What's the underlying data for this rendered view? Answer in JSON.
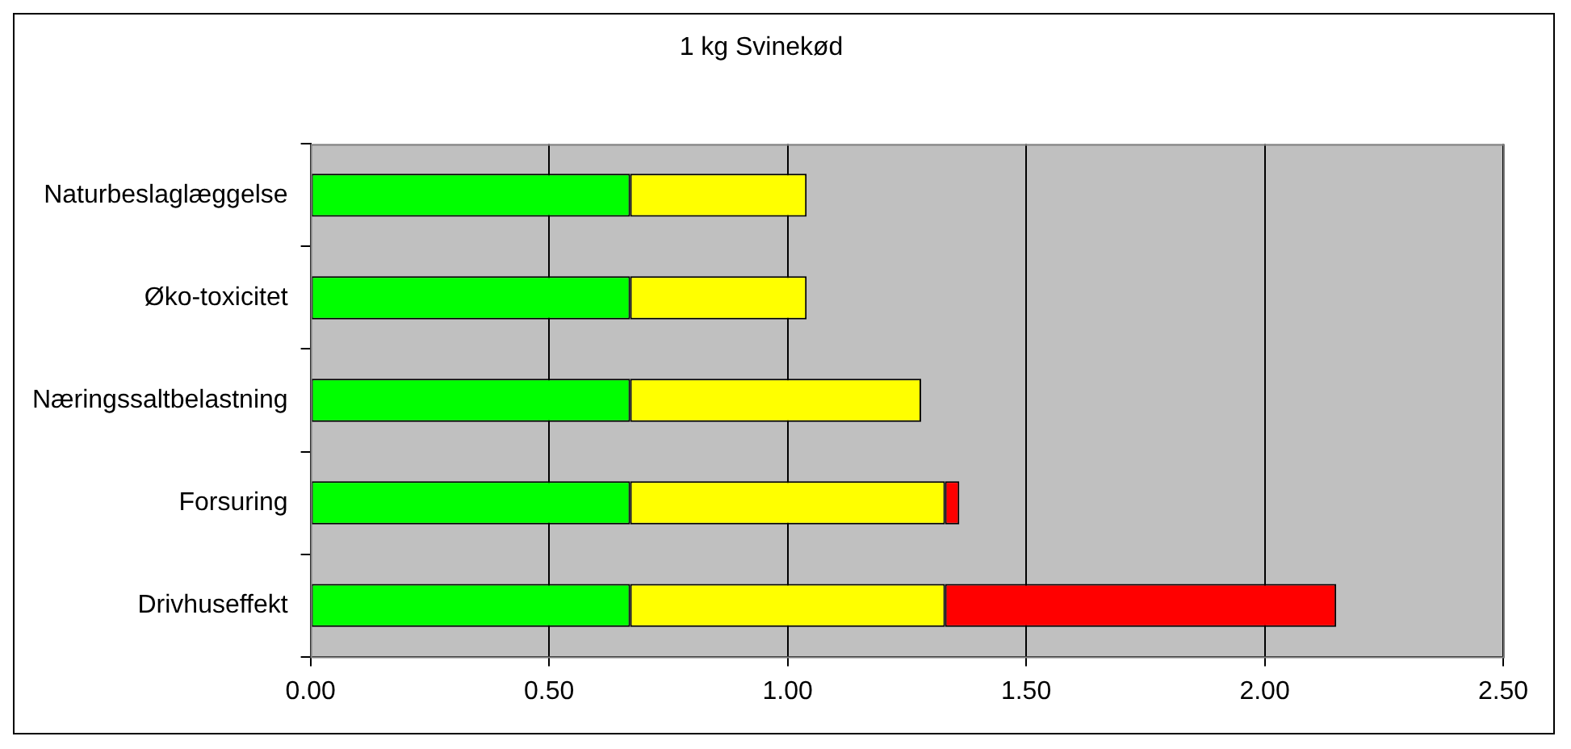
{
  "chart_data": {
    "type": "bar",
    "orientation": "horizontal",
    "stacked": true,
    "title": "1 kg Svinekød",
    "categories": [
      "Naturbeslaglæggelse",
      "Øko-toxicitet",
      "Næringssaltbelastning",
      "Forsuring",
      "Drivhuseffekt"
    ],
    "series": [
      {
        "color": "#00ff00",
        "values": [
          0.67,
          0.67,
          0.67,
          0.67,
          0.67
        ]
      },
      {
        "color": "#ffff00",
        "values": [
          0.37,
          0.37,
          0.61,
          0.66,
          0.66
        ]
      },
      {
        "color": "#ff0000",
        "values": [
          null,
          null,
          null,
          0.03,
          0.82
        ]
      }
    ],
    "xlim": [
      0,
      2.5
    ],
    "xticks": [
      {
        "value": 0,
        "label": "0.00"
      },
      {
        "value": 0.5,
        "label": "0.50"
      },
      {
        "value": 1,
        "label": "1.00"
      },
      {
        "value": 1.5,
        "label": "1.50"
      },
      {
        "value": 2,
        "label": "2.00"
      },
      {
        "value": 2.5,
        "label": "2.50"
      }
    ],
    "grid": "x",
    "legend": false
  }
}
